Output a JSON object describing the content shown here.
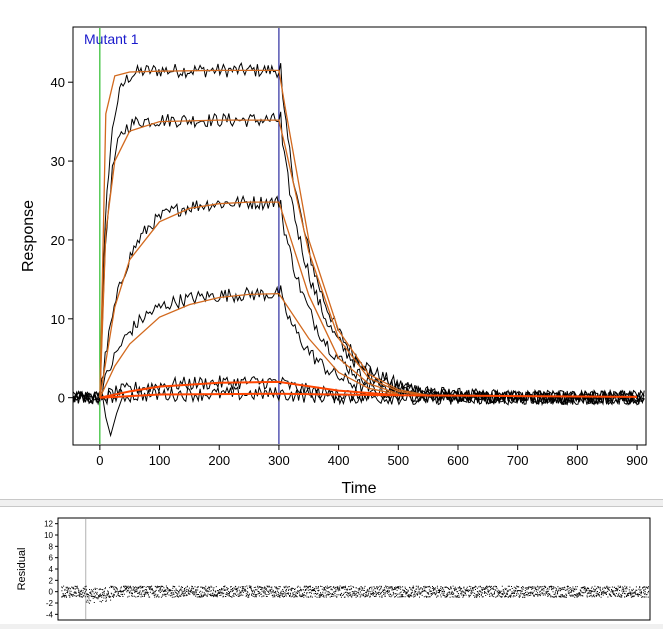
{
  "chart_data": [
    {
      "type": "line",
      "title": "Mutant 1",
      "xlabel": "Time",
      "ylabel": "Response",
      "xlim": [
        -45,
        915
      ],
      "ylim": [
        -6,
        47
      ],
      "xticks": [
        0,
        100,
        200,
        300,
        400,
        500,
        600,
        700,
        800,
        900
      ],
      "yticks": [
        0,
        10,
        20,
        30,
        40
      ],
      "markers": [
        {
          "x": 0,
          "color": "#00b000"
        },
        {
          "x": 300,
          "color": "#00008b"
        }
      ],
      "grid": false,
      "colors": {
        "measured": "#000000",
        "fit": "#d2691e",
        "fit_baseline": "#ff4500",
        "title": "#1a1acc"
      },
      "series": [
        {
          "plateau": 41.5,
          "fit_x": [
            0,
            10,
            25,
            50,
            100,
            200,
            300,
            310,
            350,
            400,
            450,
            500,
            550
          ],
          "fit_y": [
            0,
            36.0,
            40.8,
            41.3,
            41.4,
            41.5,
            41.5,
            37.0,
            20.0,
            8.5,
            3.0,
            1.0,
            0.3
          ]
        },
        {
          "plateau": 35.2,
          "fit_x": [
            0,
            10,
            25,
            50,
            100,
            200,
            300,
            310,
            350,
            400,
            450,
            500,
            550
          ],
          "fit_y": [
            0,
            21.0,
            30.0,
            33.8,
            35.0,
            35.2,
            35.2,
            32.0,
            18.5,
            7.5,
            2.5,
            0.8,
            0.2
          ]
        },
        {
          "plateau": 24.8,
          "fit_x": [
            0,
            25,
            50,
            100,
            150,
            200,
            250,
            300,
            350,
            400,
            450,
            500
          ],
          "fit_y": [
            0,
            11.5,
            17.5,
            22.3,
            24.0,
            24.6,
            24.8,
            24.8,
            13.0,
            5.0,
            1.8,
            0.5
          ]
        },
        {
          "plateau": 13.2,
          "fit_x": [
            0,
            25,
            50,
            100,
            150,
            200,
            250,
            300,
            350,
            400,
            450,
            500
          ],
          "fit_y": [
            0,
            4.0,
            6.8,
            10.2,
            11.8,
            12.7,
            13.1,
            13.2,
            7.5,
            3.2,
            1.2,
            0.4
          ]
        },
        {
          "plateau": 2.0,
          "fit_x": [
            0,
            50,
            100,
            200,
            300,
            400,
            500
          ],
          "fit_y": [
            0,
            0.8,
            1.4,
            1.9,
            2.0,
            0.9,
            0.3
          ]
        },
        {
          "plateau": 0.5,
          "fit_x": [
            0,
            100,
            300,
            500,
            700,
            900
          ],
          "fit_y": [
            0,
            0.4,
            0.5,
            0.3,
            0.2,
            0.1
          ]
        }
      ]
    },
    {
      "type": "scatter",
      "title": "",
      "xlabel": "",
      "ylabel": "Residual",
      "xlim": [
        -45,
        915
      ],
      "ylim": [
        -5,
        13
      ],
      "yticks": [
        -4,
        -2,
        0,
        2,
        4,
        6,
        8,
        10,
        12
      ],
      "marker_x": 0,
      "noise_amplitude": 1.0
    }
  ]
}
